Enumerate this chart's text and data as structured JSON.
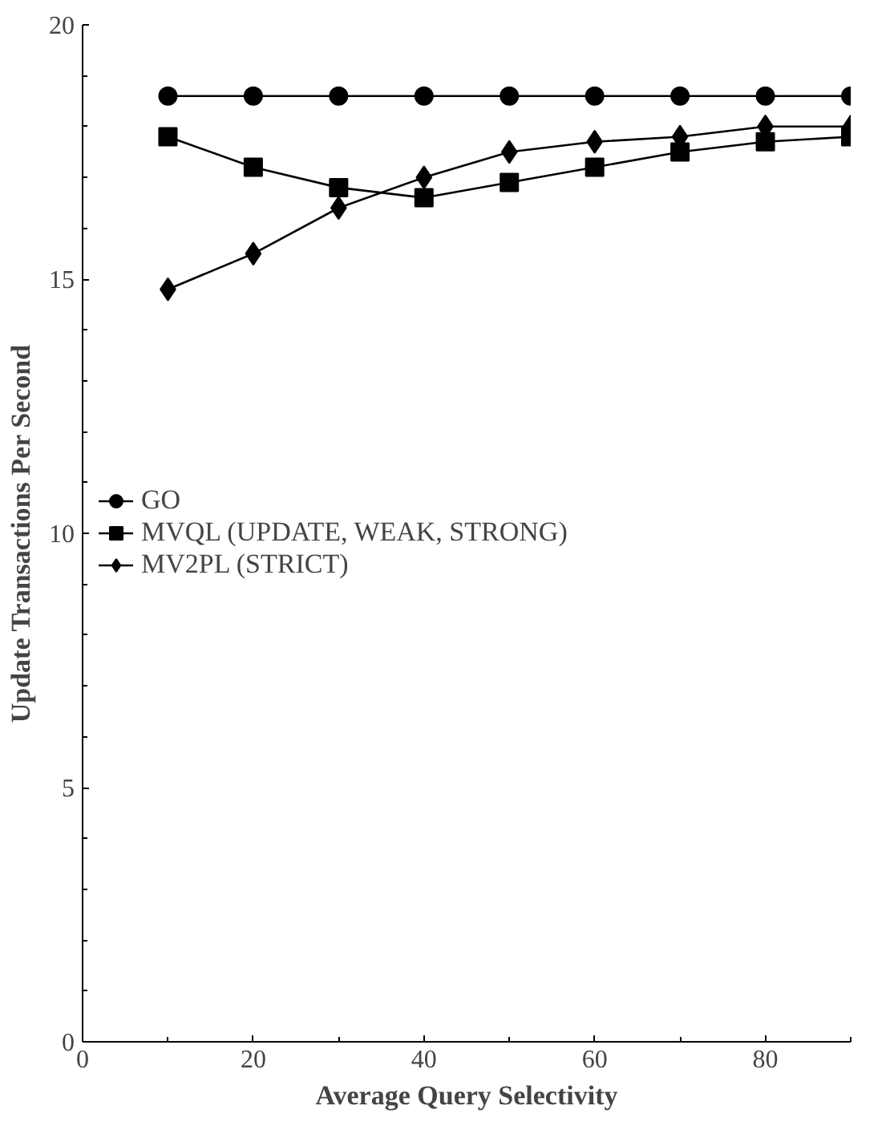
{
  "chart_data": {
    "type": "line",
    "xlabel": "Average Query Selectivity",
    "ylabel": "Update Transactions Per Second",
    "x": [
      10,
      20,
      30,
      40,
      50,
      60,
      70,
      80,
      90
    ],
    "xlim": [
      0,
      90
    ],
    "ylim": [
      0,
      20
    ],
    "xticks": [
      0,
      {
        "value": 10,
        "label": null
      },
      20,
      {
        "value": 30,
        "label": null
      },
      40,
      {
        "value": 50,
        "label": null
      },
      60,
      {
        "value": 70,
        "label": null
      },
      80,
      {
        "value": 90,
        "label": null
      }
    ],
    "yticks": [
      0,
      {
        "value": 1,
        "label": null
      },
      {
        "value": 2,
        "label": null
      },
      {
        "value": 3,
        "label": null
      },
      {
        "value": 4,
        "label": null
      },
      5,
      {
        "value": 6,
        "label": null
      },
      {
        "value": 7,
        "label": null
      },
      {
        "value": 8,
        "label": null
      },
      {
        "value": 9,
        "label": null
      },
      10,
      {
        "value": 11,
        "label": null
      },
      {
        "value": 12,
        "label": null
      },
      {
        "value": 13,
        "label": null
      },
      {
        "value": 14,
        "label": null
      },
      15,
      {
        "value": 16,
        "label": null
      },
      {
        "value": 17,
        "label": null
      },
      {
        "value": 18,
        "label": null
      },
      {
        "value": 19,
        "label": null
      },
      20
    ],
    "grid": false,
    "legend": "left",
    "line_style": "solid",
    "series": [
      {
        "name": "GO",
        "color": "#000000",
        "marker": "circle",
        "values": [
          18.6,
          18.6,
          18.6,
          18.6,
          18.6,
          18.6,
          18.6,
          18.6,
          18.6
        ]
      },
      {
        "name": "MVQL (UPDATE, WEAK, STRONG)",
        "color": "#000000",
        "marker": "square",
        "values": [
          17.8,
          17.2,
          16.8,
          16.6,
          16.9,
          17.2,
          17.5,
          17.7,
          17.8
        ]
      },
      {
        "name": "MV2PL (STRICT)",
        "color": "#000000",
        "marker": "diamond",
        "values": [
          14.8,
          15.5,
          16.4,
          17.0,
          17.5,
          17.7,
          17.8,
          18.0,
          18.0
        ]
      }
    ]
  }
}
